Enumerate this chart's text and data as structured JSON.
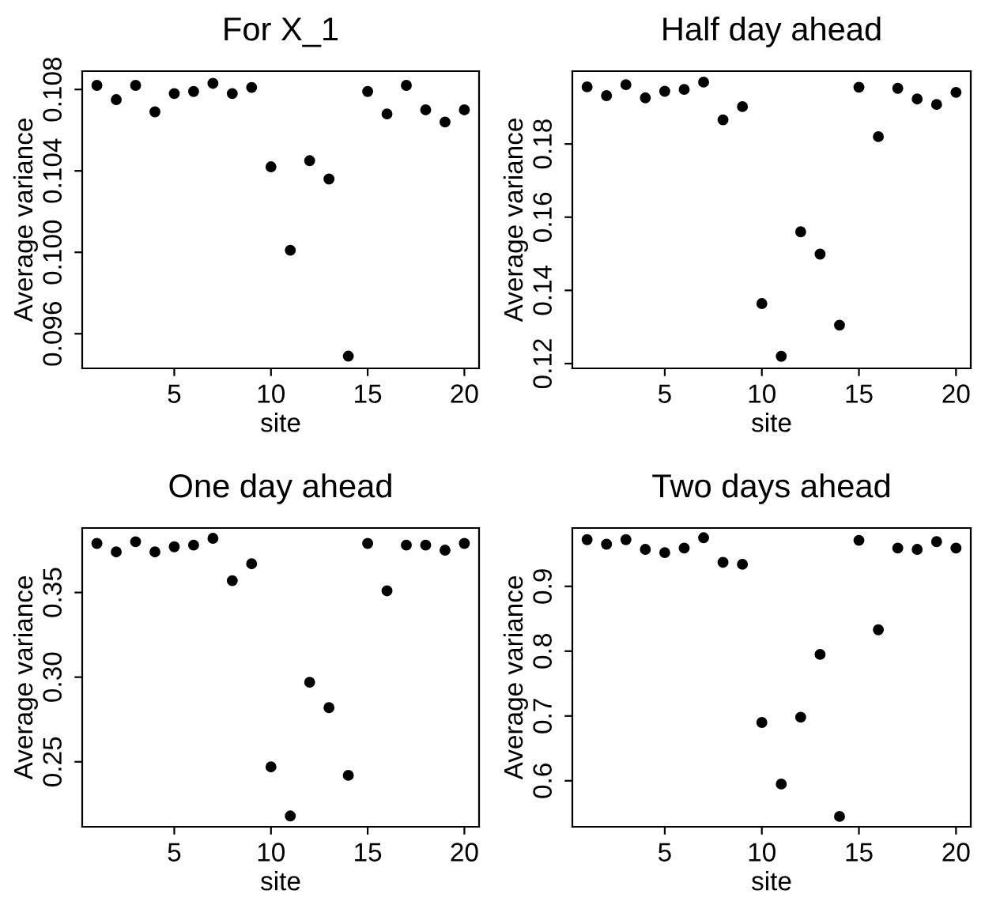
{
  "chart_data": [
    {
      "type": "scatter",
      "title": "For X_1",
      "xlabel": "site",
      "ylabel": "Average variance",
      "marker": "circle",
      "grid": false,
      "x": [
        1,
        2,
        3,
        4,
        5,
        6,
        7,
        8,
        9,
        10,
        11,
        12,
        13,
        14,
        15,
        16,
        17,
        18,
        19,
        20
      ],
      "series": [
        {
          "color": "#000000",
          "values": [
            0.1082,
            0.1075,
            0.1082,
            0.1069,
            0.1078,
            0.1079,
            0.1083,
            0.1078,
            0.1081,
            0.1042,
            0.1001,
            0.1045,
            0.1036,
            0.0949,
            0.1079,
            0.1068,
            0.1082,
            0.107,
            0.1064,
            0.107
          ]
        }
      ],
      "xlim": [
        0.24,
        20.76
      ],
      "xticks": [
        5,
        10,
        15,
        20
      ],
      "ylim": [
        0.0943,
        0.1089
      ],
      "yticks": [
        0.096,
        {
          "value": 0.1,
          "label": "0.100"
        },
        0.104,
        0.108
      ]
    },
    {
      "type": "scatter",
      "title": "Half day ahead",
      "xlabel": "site",
      "ylabel": "Average variance",
      "marker": "circle",
      "grid": false,
      "x": [
        1,
        2,
        3,
        4,
        5,
        6,
        7,
        8,
        9,
        10,
        11,
        12,
        13,
        14,
        15,
        16,
        17,
        18,
        19,
        20
      ],
      "series": [
        {
          "color": "#000000",
          "values": [
            0.1956,
            0.1932,
            0.1962,
            0.1926,
            0.1944,
            0.1949,
            0.1969,
            0.1866,
            0.1902,
            0.1364,
            0.122,
            0.156,
            0.1499,
            0.1305,
            0.1955,
            0.182,
            0.1952,
            0.1923,
            0.1908,
            0.1941
          ]
        }
      ],
      "xlim": [
        0.24,
        20.76
      ],
      "xticks": [
        5,
        10,
        15,
        20
      ],
      "ylim": [
        0.1187,
        0.1999
      ],
      "yticks": [
        0.12,
        0.14,
        0.16,
        0.18
      ]
    },
    {
      "type": "scatter",
      "title": "One day ahead",
      "xlabel": "site",
      "ylabel": "Average variance",
      "marker": "circle",
      "grid": false,
      "x": [
        1,
        2,
        3,
        4,
        5,
        6,
        7,
        8,
        9,
        10,
        11,
        12,
        13,
        14,
        15,
        16,
        17,
        18,
        19,
        20
      ],
      "series": [
        {
          "color": "#000000",
          "values": [
            0.379,
            0.374,
            0.38,
            0.374,
            0.377,
            0.378,
            0.382,
            0.357,
            0.367,
            0.247,
            0.218,
            0.297,
            0.282,
            0.242,
            0.379,
            0.351,
            0.378,
            0.378,
            0.375,
            0.379
          ]
        }
      ],
      "xlim": [
        0.24,
        20.76
      ],
      "xticks": [
        5,
        10,
        15,
        20
      ],
      "ylim": [
        0.2116,
        0.3881
      ],
      "yticks": [
        0.25,
        {
          "value": 0.3,
          "label": "0.30"
        },
        0.35
      ]
    },
    {
      "type": "scatter",
      "title": "Two days ahead",
      "xlabel": "site",
      "ylabel": "Average variance",
      "marker": "circle",
      "grid": false,
      "x": [
        1,
        2,
        3,
        4,
        5,
        6,
        7,
        8,
        9,
        10,
        11,
        12,
        13,
        14,
        15,
        16,
        17,
        18,
        19,
        20
      ],
      "series": [
        {
          "color": "#000000",
          "values": [
            0.972,
            0.965,
            0.972,
            0.957,
            0.952,
            0.959,
            0.975,
            0.937,
            0.934,
            0.69,
            0.595,
            0.698,
            0.795,
            0.545,
            0.971,
            0.833,
            0.959,
            0.957,
            0.969,
            0.959
          ]
        }
      ],
      "xlim": [
        0.24,
        20.76
      ],
      "xticks": [
        5,
        10,
        15,
        20
      ],
      "ylim": [
        0.529,
        0.99
      ],
      "yticks": [
        0.6,
        0.7,
        0.8,
        0.9
      ]
    }
  ]
}
